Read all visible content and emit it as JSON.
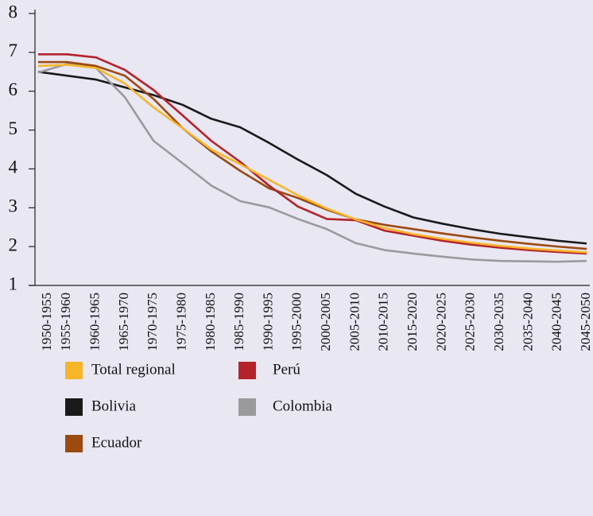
{
  "chart_data": {
    "type": "line",
    "categories": [
      "1950-1955",
      "1955-1960",
      "1960-1965",
      "1965-1970",
      "1970-1975",
      "1975-1980",
      "1980-1985",
      "1985-1990",
      "1990-1995",
      "1995-2000",
      "2000-2005",
      "2005-2010",
      "2010-2015",
      "2015-2020",
      "2020-2025",
      "2025-2030",
      "2030-2035",
      "2035-2040",
      "2040-2045",
      "2045-2050"
    ],
    "series": [
      {
        "name": "Total regional",
        "color": "#f7b52a",
        "values": [
          6.65,
          6.68,
          6.6,
          6.2,
          5.58,
          5.05,
          4.5,
          4.12,
          3.72,
          3.32,
          2.98,
          2.7,
          2.48,
          2.32,
          2.2,
          2.1,
          2.02,
          1.95,
          1.9,
          1.85
        ]
      },
      {
        "name": "Perú",
        "color": "#b4232a",
        "values": [
          6.95,
          6.95,
          6.87,
          6.55,
          6.03,
          5.38,
          4.72,
          4.18,
          3.57,
          3.03,
          2.71,
          2.68,
          2.41,
          2.28,
          2.15,
          2.05,
          1.97,
          1.91,
          1.86,
          1.82
        ]
      },
      {
        "name": "Bolivia",
        "color": "#1a1a1a",
        "values": [
          6.5,
          6.4,
          6.3,
          6.1,
          5.9,
          5.65,
          5.29,
          5.07,
          4.67,
          4.24,
          3.84,
          3.36,
          3.03,
          2.75,
          2.59,
          2.45,
          2.33,
          2.24,
          2.15,
          2.08
        ]
      },
      {
        "name": "Colombia",
        "color": "#9a9a9e",
        "values": [
          6.48,
          6.7,
          6.6,
          5.85,
          4.72,
          4.15,
          3.57,
          3.17,
          3.01,
          2.71,
          2.45,
          2.09,
          1.91,
          1.82,
          1.74,
          1.67,
          1.63,
          1.62,
          1.61,
          1.63
        ]
      },
      {
        "name": "Ecuador",
        "color": "#9b4a10",
        "values": [
          6.75,
          6.75,
          6.65,
          6.4,
          5.8,
          5.05,
          4.45,
          3.95,
          3.5,
          3.25,
          2.95,
          2.7,
          2.56,
          2.45,
          2.34,
          2.24,
          2.15,
          2.07,
          2.0,
          1.94
        ]
      }
    ],
    "ylim": [
      1,
      8
    ],
    "yticks": [
      1,
      2,
      3,
      4,
      5,
      6,
      7,
      8
    ],
    "grid": false
  }
}
